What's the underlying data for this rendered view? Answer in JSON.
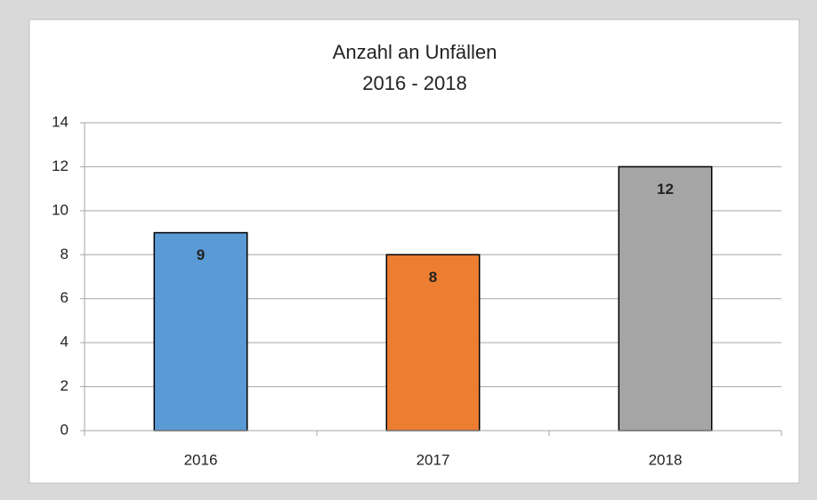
{
  "chart_data": {
    "type": "bar",
    "title": "Anzahl an Unfällen",
    "subtitle": "2016 - 2018",
    "categories": [
      "2016",
      "2017",
      "2018"
    ],
    "values": [
      9,
      8,
      12
    ],
    "colors": [
      "#5b9bd5",
      "#ed7d31",
      "#a5a5a5"
    ],
    "ylim": [
      0,
      14
    ],
    "yticks": [
      0,
      2,
      4,
      6,
      8,
      10,
      12,
      14
    ],
    "grid": true
  }
}
